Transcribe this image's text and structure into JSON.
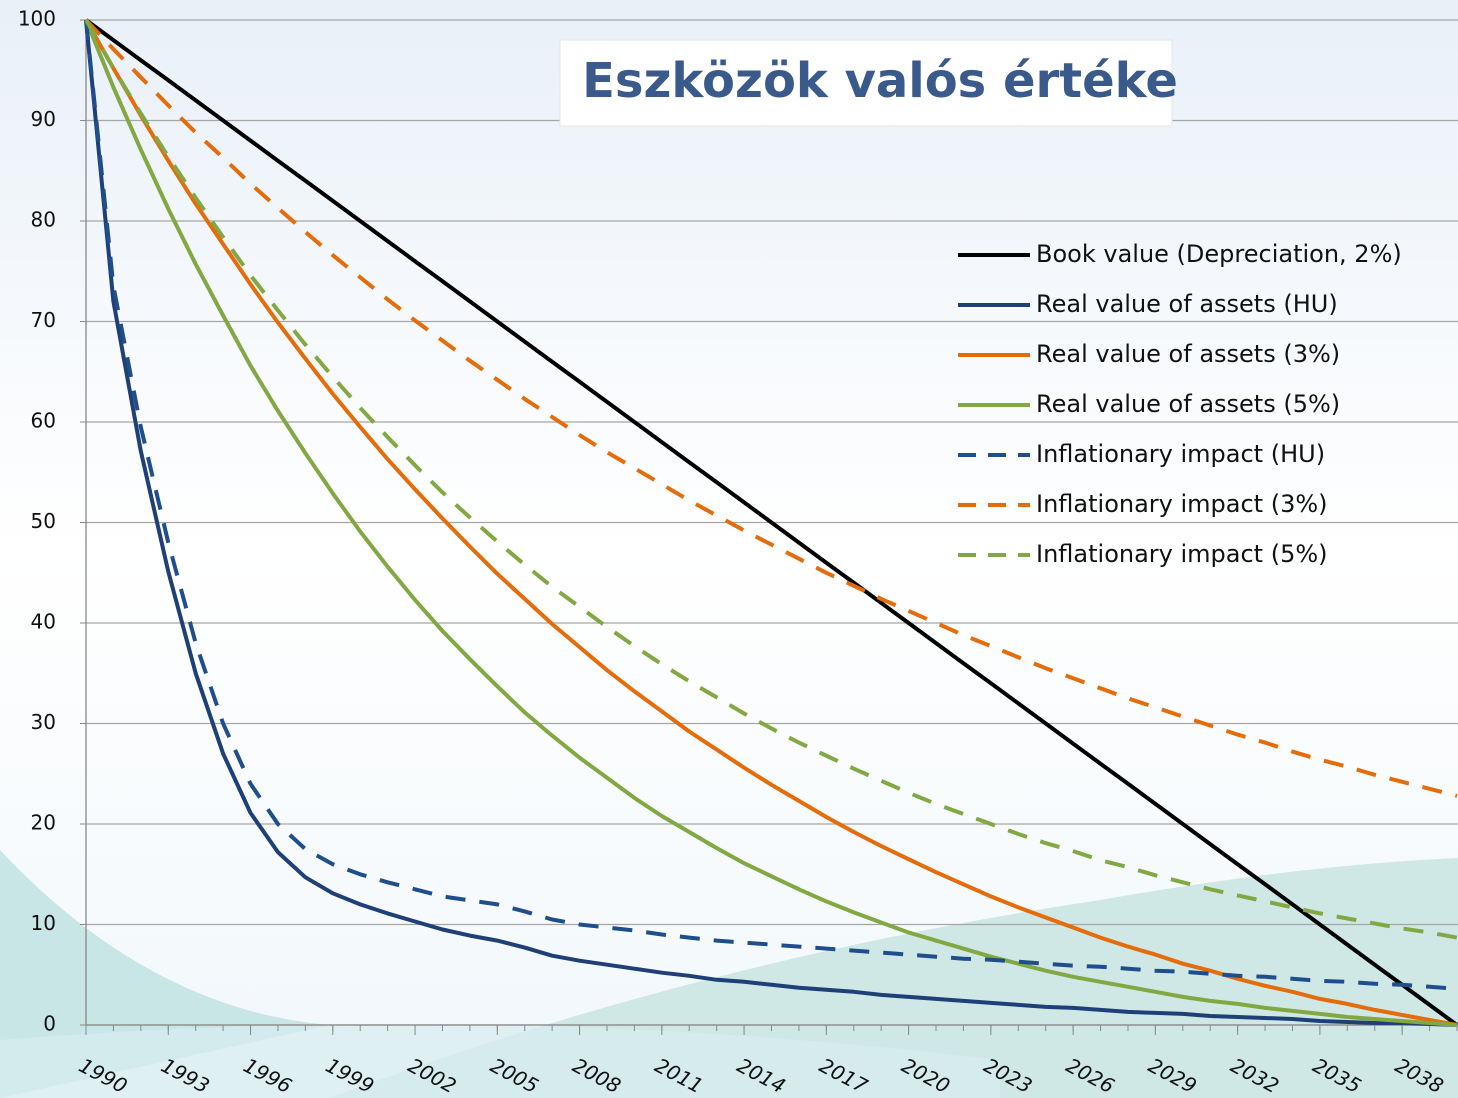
{
  "chart_data": {
    "type": "line",
    "title": "Eszközök valós értéke",
    "x": [
      1990,
      1991,
      1992,
      1993,
      1994,
      1995,
      1996,
      1997,
      1998,
      1999,
      2000,
      2001,
      2002,
      2003,
      2004,
      2005,
      2006,
      2007,
      2008,
      2009,
      2010,
      2011,
      2012,
      2013,
      2014,
      2015,
      2016,
      2017,
      2018,
      2019,
      2020,
      2021,
      2022,
      2023,
      2024,
      2025,
      2026,
      2027,
      2028,
      2029,
      2030,
      2031,
      2032,
      2033,
      2034,
      2035,
      2036,
      2037,
      2038,
      2039,
      2040
    ],
    "xlim": [
      1990,
      2040
    ],
    "xticks": [
      1990,
      1993,
      1996,
      1999,
      2002,
      2005,
      2008,
      2011,
      2014,
      2017,
      2020,
      2023,
      2026,
      2029,
      2032,
      2035,
      2038
    ],
    "ylim": [
      0,
      100
    ],
    "yticks": [
      0,
      10,
      20,
      30,
      40,
      50,
      60,
      70,
      80,
      90,
      100
    ],
    "grid": true,
    "legend": "upper right",
    "series": [
      {
        "name": "Book value (Depreciation, 2%)",
        "color": "#000000",
        "dash": false,
        "values": [
          100,
          98,
          96,
          94,
          92,
          90,
          88,
          86,
          84,
          82,
          80,
          78,
          76,
          74,
          72,
          70,
          68,
          66,
          64,
          62,
          60,
          58,
          56,
          54,
          52,
          50,
          48,
          46,
          44,
          42,
          40,
          38,
          36,
          34,
          32,
          30,
          28,
          26,
          24,
          22,
          20,
          18,
          16,
          14,
          12,
          10,
          8,
          6,
          4,
          2,
          0
        ]
      },
      {
        "name": "Real value of assets (HU)",
        "color": "#1f3f77",
        "dash": false,
        "values": [
          100,
          72.0,
          57.1,
          45.1,
          35.0,
          27.0,
          21.1,
          17.2,
          14.7,
          13.1,
          12.0,
          11.1,
          10.3,
          9.5,
          8.9,
          8.4,
          7.7,
          6.9,
          6.4,
          6.0,
          5.6,
          5.2,
          4.9,
          4.5,
          4.3,
          4.0,
          3.7,
          3.5,
          3.3,
          3.0,
          2.8,
          2.6,
          2.4,
          2.2,
          2.0,
          1.8,
          1.7,
          1.5,
          1.3,
          1.2,
          1.1,
          0.9,
          0.8,
          0.7,
          0.6,
          0.4,
          0.3,
          0.2,
          0.2,
          0.1,
          0
        ]
      },
      {
        "name": "Real value of assets (3%)",
        "color": "#e46c0a",
        "dash": false,
        "values": [
          100,
          95.2,
          90.5,
          86.0,
          81.7,
          77.7,
          73.7,
          69.9,
          66.3,
          62.8,
          59.5,
          56.3,
          53.3,
          50.4,
          47.6,
          44.9,
          42.4,
          39.9,
          37.6,
          35.3,
          33.2,
          31.2,
          29.2,
          27.4,
          25.6,
          23.9,
          22.3,
          20.7,
          19.2,
          17.8,
          16.5,
          15.2,
          14.0,
          12.8,
          11.7,
          10.7,
          9.7,
          8.7,
          7.8,
          7.0,
          6.1,
          5.4,
          4.6,
          3.9,
          3.3,
          2.6,
          2.1,
          1.5,
          1.0,
          0.5,
          0
        ]
      },
      {
        "name": "Real value of assets (5%)",
        "color": "#82a843",
        "dash": false,
        "values": [
          100,
          93.3,
          87.1,
          81.2,
          75.7,
          70.6,
          65.6,
          61.1,
          56.9,
          52.9,
          49.1,
          45.6,
          42.3,
          39.2,
          36.4,
          33.7,
          31.1,
          28.8,
          26.6,
          24.6,
          22.6,
          20.8,
          19.2,
          17.6,
          16.1,
          14.8,
          13.5,
          12.3,
          11.2,
          10.2,
          9.2,
          8.4,
          7.6,
          6.8,
          6.1,
          5.4,
          4.8,
          4.3,
          3.8,
          3.3,
          2.8,
          2.4,
          2.1,
          1.7,
          1.4,
          1.1,
          0.8,
          0.6,
          0.4,
          0.2,
          0
        ]
      },
      {
        "name": "Inflationary impact (HU)",
        "color": "#1f4e8c",
        "dash": true,
        "values": [
          100,
          73.5,
          59.5,
          48,
          38,
          30,
          24,
          20,
          17.5,
          16,
          15,
          14.2,
          13.5,
          12.8,
          12.4,
          12,
          11.3,
          10.5,
          10,
          9.7,
          9.4,
          9.0,
          8.7,
          8.4,
          8.2,
          8.0,
          7.8,
          7.6,
          7.4,
          7.2,
          7.0,
          6.8,
          6.6,
          6.5,
          6.3,
          6.1,
          5.9,
          5.8,
          5.6,
          5.4,
          5.3,
          5.1,
          4.9,
          4.8,
          4.6,
          4.4,
          4.3,
          4.1,
          4.0,
          3.8,
          3.6
        ]
      },
      {
        "name": "Inflationary impact (3%)",
        "color": "#e46c0a",
        "dash": true,
        "values": [
          100,
          97.1,
          94.3,
          91.5,
          88.8,
          86.3,
          83.7,
          81.3,
          78.9,
          76.6,
          74.4,
          72.2,
          70.1,
          68.1,
          66.1,
          64.2,
          62.3,
          60.5,
          58.7,
          57.0,
          55.4,
          53.8,
          52.2,
          50.7,
          49.2,
          47.8,
          46.4,
          45.0,
          43.7,
          42.4,
          41.2,
          40.0,
          38.8,
          37.7,
          36.6,
          35.5,
          34.5,
          33.5,
          32.5,
          31.6,
          30.7,
          29.8,
          28.9,
          28.1,
          27.2,
          26.4,
          25.7,
          24.9,
          24.2,
          23.5,
          22.8
        ]
      },
      {
        "name": "Inflationary impact (5%)",
        "color": "#82a843",
        "dash": true,
        "values": [
          100,
          95.2,
          90.7,
          86.4,
          82.3,
          78.4,
          74.6,
          71.1,
          67.7,
          64.5,
          61.4,
          58.5,
          55.7,
          53.0,
          50.5,
          48.1,
          45.8,
          43.6,
          41.6,
          39.6,
          37.7,
          35.9,
          34.2,
          32.6,
          31.0,
          29.5,
          28.1,
          26.8,
          25.5,
          24.3,
          23.1,
          22.0,
          21.0,
          20.0,
          19.0,
          18.1,
          17.3,
          16.4,
          15.7,
          14.9,
          14.2,
          13.5,
          12.9,
          12.3,
          11.7,
          11.1,
          10.6,
          10.1,
          9.6,
          9.2,
          8.7
        ]
      }
    ]
  }
}
